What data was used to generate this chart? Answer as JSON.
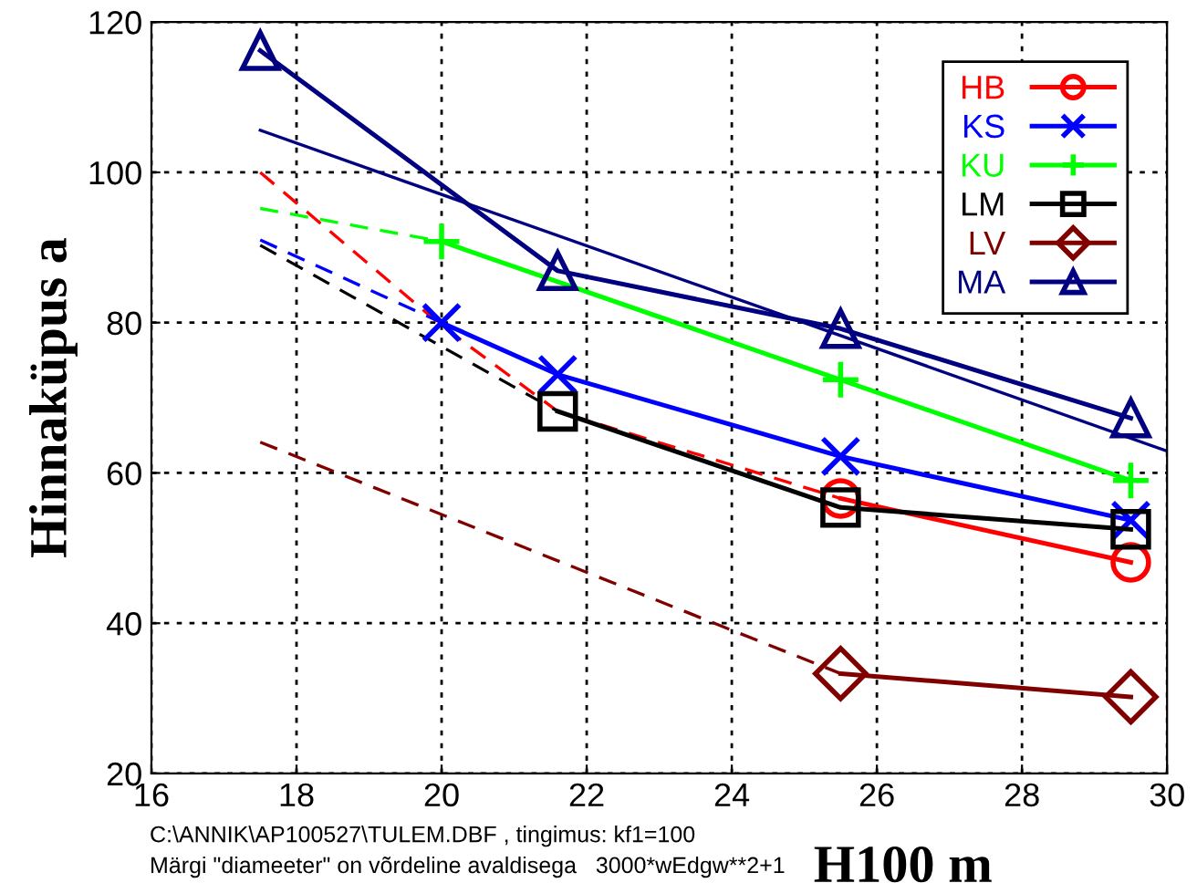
{
  "chart_data": {
    "type": "line",
    "xlabel": "H100 m",
    "ylabel": "Hinnaküpus a",
    "xlim": [
      16,
      30
    ],
    "ylim": [
      20,
      120
    ],
    "xticks": [
      16,
      18,
      20,
      22,
      24,
      26,
      28,
      30
    ],
    "yticks": [
      20,
      40,
      60,
      80,
      100,
      120
    ],
    "grid": true,
    "legend": "top right",
    "annotations": [
      "C:\\ANNIK\\AP100527\\TULEM.DBF , tingimus: kf1=100",
      "Märgi \"diameeter\" on võrdeline avaldisega   3000*wEdgw**2+1"
    ],
    "series": [
      {
        "color": "#ff0000",
        "x": [
          17.5,
          20,
          21.6,
          25.5
        ],
        "values": [
          100,
          79.6,
          68.2,
          56.6
        ],
        "line_style": "dashed"
      },
      {
        "color": "#0000ff",
        "x": [
          17.5,
          20
        ],
        "values": [
          91.0,
          80.0
        ],
        "line_style": "dashed"
      },
      {
        "color": "#00ff00",
        "x": [
          17.5,
          20
        ],
        "values": [
          95.2,
          90.8
        ],
        "line_style": "dashed"
      },
      {
        "color": "#000000",
        "x": [
          17.5,
          21.6
        ],
        "values": [
          90.3,
          68.2
        ],
        "line_style": "dashed"
      },
      {
        "color": "#800000",
        "x": [
          17.5,
          25.5
        ],
        "values": [
          64.1,
          33.3
        ],
        "line_style": "dashed"
      },
      {
        "color": "#000080",
        "x": [
          17.5,
          30
        ],
        "values": [
          105.6,
          62.9
        ],
        "line_style": "solid"
      },
      {
        "name": "HB",
        "color": "#ff0000",
        "x": [
          25.5,
          29.5
        ],
        "values": [
          56.6,
          48.1
        ],
        "line_style": "solid",
        "marker": "circle"
      },
      {
        "name": "KS",
        "color": "#0000ff",
        "x": [
          20,
          21.6,
          25.5,
          29.5
        ],
        "values": [
          80.0,
          73.1,
          62.2,
          53.7
        ],
        "line_style": "solid",
        "marker": "cross"
      },
      {
        "name": "KU",
        "color": "#00ff00",
        "x": [
          20,
          25.5,
          29.5
        ],
        "values": [
          90.8,
          72.4,
          59.0
        ],
        "line_style": "solid",
        "marker": "plus"
      },
      {
        "name": "LM",
        "color": "#000000",
        "x": [
          21.6,
          25.5,
          29.5
        ],
        "values": [
          68.2,
          55.4,
          52.5
        ],
        "line_style": "solid",
        "marker": "square"
      },
      {
        "name": "LV",
        "color": "#800000",
        "x": [
          25.5,
          29.5
        ],
        "values": [
          33.3,
          30.2
        ],
        "line_style": "solid",
        "marker": "diamond"
      },
      {
        "name": "MA",
        "color": "#000080",
        "x": [
          17.5,
          21.6,
          25.5,
          29.5
        ],
        "values": [
          116.2,
          86.9,
          79.2,
          67.3
        ],
        "line_style": "solid",
        "marker": "triangle"
      }
    ]
  }
}
